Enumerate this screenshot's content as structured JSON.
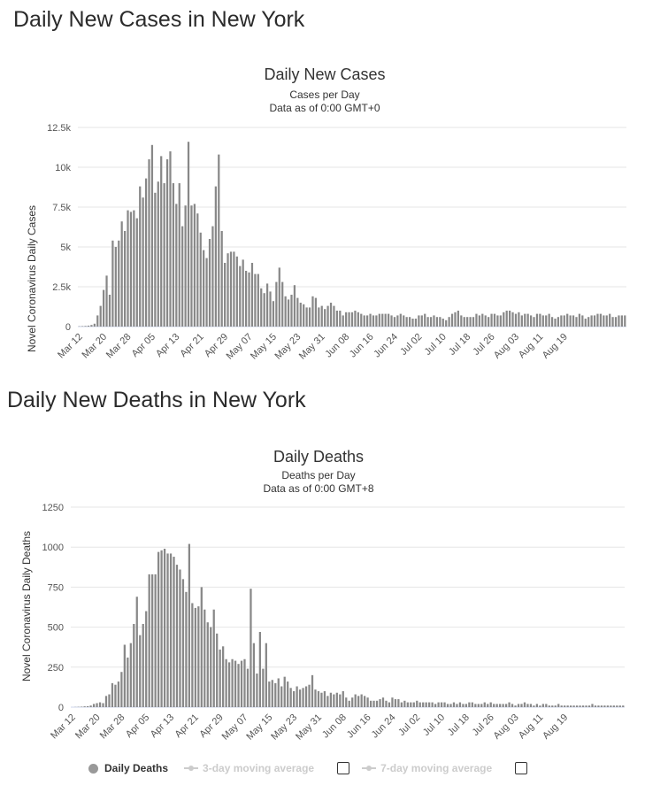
{
  "heading_cases": "Daily New Cases in New York",
  "heading_deaths": "Daily New Deaths in New York",
  "chart_data": [
    {
      "type": "bar",
      "title": "Daily New Cases",
      "subtitle1": "Cases per Day",
      "subtitle2": "Data as of 0:00 GMT+0",
      "ylabel": "Novel Coronavirus Daily Cases",
      "ylim": [
        0,
        12500
      ],
      "yticks": [
        0,
        2500,
        5000,
        7500,
        10000,
        12500
      ],
      "ytick_labels": [
        "0",
        "2.5k",
        "5k",
        "7.5k",
        "10k",
        "12.5k"
      ],
      "xtick_labels": [
        "Mar 12",
        "Mar 20",
        "Mar 28",
        "Apr 05",
        "Apr 13",
        "Apr 21",
        "Apr 29",
        "May 07",
        "May 15",
        "May 23",
        "May 31",
        "Jun 08",
        "Jun 16",
        "Jun 24",
        "Jul 02",
        "Jul 10",
        "Jul 18",
        "Jul 26",
        "Aug 03",
        "Aug 11",
        "Aug 19"
      ],
      "grid": true,
      "color": "#888888",
      "values": [
        20,
        30,
        40,
        60,
        100,
        180,
        700,
        1300,
        2300,
        3200,
        2000,
        5400,
        5000,
        5400,
        6600,
        6000,
        7300,
        7200,
        7300,
        6800,
        8800,
        8100,
        9300,
        10500,
        11400,
        8400,
        9100,
        10700,
        9000,
        10500,
        11000,
        9000,
        7700,
        9000,
        6300,
        7600,
        11600,
        7600,
        7700,
        7100,
        5900,
        4800,
        4300,
        5500,
        6300,
        8800,
        10800,
        6000,
        4000,
        4600,
        4700,
        4700,
        4400,
        3800,
        4200,
        3500,
        3400,
        4000,
        3300,
        3300,
        2400,
        2100,
        2700,
        2200,
        1600,
        2800,
        3700,
        2800,
        1900,
        1700,
        2000,
        2600,
        1800,
        1500,
        1400,
        1200,
        1200,
        1900,
        1800,
        1200,
        1300,
        1100,
        1300,
        1500,
        1300,
        1000,
        1000,
        700,
        900,
        900,
        900,
        1000,
        900,
        800,
        700,
        700,
        800,
        700,
        700,
        800,
        800,
        800,
        800,
        700,
        600,
        700,
        800,
        700,
        600,
        600,
        500,
        500,
        700,
        700,
        800,
        600,
        600,
        700,
        600,
        600,
        500,
        400,
        600,
        800,
        900,
        1000,
        700,
        600,
        600,
        600,
        600,
        800,
        700,
        800,
        700,
        600,
        800,
        800,
        700,
        700,
        900,
        1000,
        1000,
        900,
        800,
        900,
        700,
        800,
        800,
        700,
        600,
        800,
        800,
        700,
        700,
        800,
        600,
        500,
        600,
        700,
        700,
        800,
        700,
        700,
        600,
        800,
        700,
        500,
        600,
        700,
        700,
        800,
        800,
        700,
        700,
        800,
        600,
        600,
        700,
        700,
        700
      ]
    },
    {
      "type": "bar",
      "title": "Daily Deaths",
      "subtitle1": "Deaths per Day",
      "subtitle2": "Data as of 0:00 GMT+8",
      "ylabel": "Novel Coronavirus Daily Deaths",
      "ylim": [
        0,
        1250
      ],
      "yticks": [
        0,
        250,
        500,
        750,
        1000,
        1250
      ],
      "ytick_labels": [
        "0",
        "250",
        "500",
        "750",
        "1000",
        "1250"
      ],
      "xtick_labels": [
        "Mar 12",
        "Mar 20",
        "Mar 28",
        "Apr 05",
        "Apr 13",
        "Apr 21",
        "Apr 29",
        "May 07",
        "May 15",
        "May 23",
        "May 31",
        "Jun 08",
        "Jun 16",
        "Jun 24",
        "Jul 02",
        "Jul 10",
        "Jul 18",
        "Jul 26",
        "Aug 03",
        "Aug 11",
        "Aug 19"
      ],
      "grid": true,
      "color": "#888888",
      "values": [
        0,
        1,
        2,
        3,
        5,
        6,
        10,
        20,
        25,
        30,
        25,
        70,
        80,
        150,
        140,
        160,
        220,
        390,
        310,
        400,
        520,
        690,
        450,
        520,
        600,
        830,
        830,
        830,
        970,
        980,
        990,
        960,
        960,
        940,
        890,
        860,
        800,
        720,
        1020,
        650,
        620,
        630,
        750,
        610,
        530,
        500,
        610,
        460,
        360,
        380,
        300,
        280,
        300,
        290,
        270,
        290,
        300,
        240,
        740,
        400,
        210,
        470,
        240,
        400,
        160,
        170,
        150,
        180,
        130,
        190,
        160,
        120,
        100,
        130,
        110,
        120,
        130,
        140,
        200,
        110,
        100,
        90,
        100,
        70,
        90,
        80,
        90,
        80,
        100,
        60,
        40,
        60,
        80,
        70,
        80,
        70,
        60,
        40,
        40,
        40,
        50,
        60,
        40,
        30,
        60,
        50,
        50,
        30,
        40,
        30,
        30,
        30,
        40,
        30,
        30,
        30,
        30,
        30,
        20,
        30,
        30,
        30,
        20,
        20,
        30,
        20,
        30,
        20,
        20,
        30,
        30,
        20,
        20,
        20,
        30,
        20,
        30,
        20,
        20,
        20,
        20,
        20,
        30,
        20,
        10,
        20,
        20,
        30,
        20,
        20,
        10,
        20,
        10,
        20,
        20,
        10,
        10,
        10,
        20,
        10,
        10,
        10,
        10,
        10,
        10,
        10,
        10,
        10,
        10,
        20,
        10,
        10,
        10,
        10,
        10,
        10,
        10,
        10,
        10,
        10
      ]
    }
  ],
  "legend": {
    "daily_deaths": "Daily Deaths",
    "ma3": "3-day moving average",
    "ma7": "7-day moving average"
  }
}
